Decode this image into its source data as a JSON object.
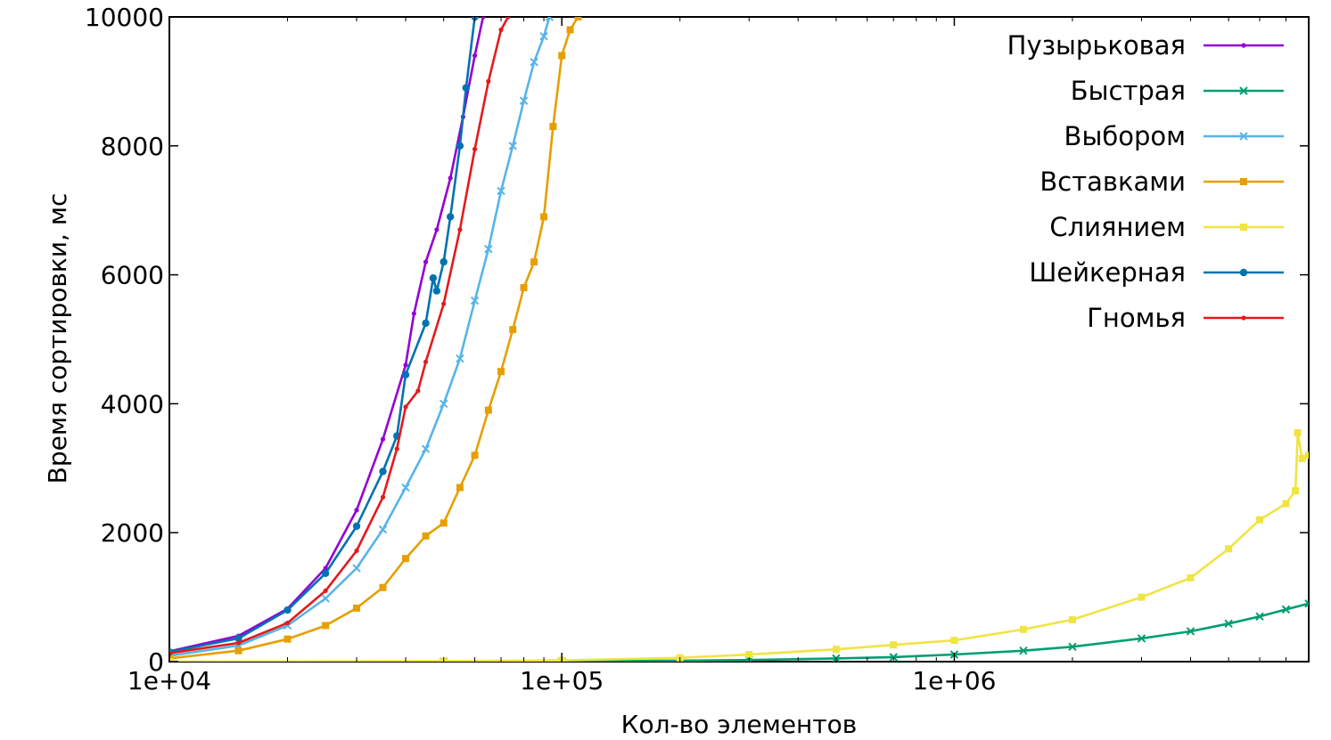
{
  "chart_data": {
    "type": "line",
    "title": "",
    "xlabel": "Кол-во элементов",
    "ylabel": "Время сортировки, мс",
    "xscale": "log",
    "xlim": [
      10000,
      8000000
    ],
    "ylim": [
      0,
      10000
    ],
    "x_ticks": [
      10000,
      100000,
      1000000
    ],
    "x_tick_labels": [
      "1e+04",
      "1e+05",
      "1e+06"
    ],
    "y_ticks": [
      0,
      2000,
      4000,
      6000,
      8000,
      10000
    ],
    "y_tick_labels": [
      "0",
      "2000",
      "4000",
      "6000",
      "8000",
      "10000"
    ],
    "grid": false,
    "legend_position": "top-right",
    "series": [
      {
        "name": "Пузырьковая",
        "color": "#9400d3",
        "marker": "dot",
        "x": [
          10000,
          15000,
          20000,
          25000,
          30000,
          35000,
          40000,
          42000,
          45000,
          48000,
          52000,
          56000,
          60000,
          63000
        ],
        "y": [
          160,
          400,
          820,
          1450,
          2350,
          3450,
          4600,
          5400,
          6200,
          6700,
          7500,
          8450,
          9400,
          10000
        ]
      },
      {
        "name": "Быстрая",
        "color": "#009e73",
        "marker": "x",
        "x": [
          10000,
          50000,
          100000,
          200000,
          300000,
          500000,
          700000,
          1000000,
          1500000,
          2000000,
          3000000,
          4000000,
          5000000,
          6000000,
          7000000,
          8000000
        ],
        "y": [
          0,
          0,
          5,
          15,
          25,
          50,
          70,
          110,
          170,
          230,
          360,
          470,
          590,
          700,
          810,
          900
        ]
      },
      {
        "name": "Выбором",
        "color": "#56b4e9",
        "marker": "x",
        "x": [
          10000,
          15000,
          20000,
          25000,
          30000,
          35000,
          40000,
          45000,
          50000,
          55000,
          60000,
          65000,
          70000,
          75000,
          80000,
          85000,
          90000,
          93000
        ],
        "y": [
          90,
          250,
          560,
          980,
          1450,
          2050,
          2700,
          3300,
          4000,
          4700,
          5600,
          6400,
          7300,
          8000,
          8700,
          9300,
          9700,
          10000
        ]
      },
      {
        "name": "Вставками",
        "color": "#e69f00",
        "marker": "square",
        "x": [
          10000,
          15000,
          20000,
          25000,
          30000,
          35000,
          40000,
          45000,
          50000,
          55000,
          60000,
          65000,
          70000,
          75000,
          80000,
          85000,
          90000,
          95000,
          100000,
          105000,
          110000
        ],
        "y": [
          50,
          170,
          350,
          560,
          830,
          1150,
          1600,
          1950,
          2150,
          2700,
          3200,
          3900,
          4500,
          5150,
          5800,
          6200,
          6900,
          8300,
          9400,
          9800,
          10000
        ]
      },
      {
        "name": "Слиянием",
        "color": "#f0e442",
        "marker": "square",
        "x": [
          10000,
          50000,
          100000,
          200000,
          300000,
          500000,
          700000,
          1000000,
          1500000,
          2000000,
          3000000,
          4000000,
          5000000,
          6000000,
          7000000,
          7400000,
          7500000,
          7700000,
          8000000
        ],
        "y": [
          0,
          10,
          20,
          60,
          110,
          190,
          260,
          330,
          500,
          650,
          1000,
          1300,
          1750,
          2200,
          2450,
          2650,
          3550,
          3150,
          3200
        ]
      },
      {
        "name": "Шейкерная",
        "color": "#0072b2",
        "marker": "circle",
        "x": [
          10000,
          15000,
          20000,
          25000,
          30000,
          35000,
          38000,
          40000,
          45000,
          47000,
          48000,
          50000,
          52000,
          55000,
          57000,
          60000
        ],
        "y": [
          150,
          360,
          800,
          1370,
          2100,
          2950,
          3500,
          4450,
          5250,
          5950,
          5750,
          6200,
          6900,
          8000,
          8900,
          10000
        ]
      },
      {
        "name": "Гномья",
        "color": "#e41a1c",
        "marker": "dot",
        "x": [
          10000,
          15000,
          20000,
          25000,
          30000,
          35000,
          38000,
          40000,
          43000,
          45000,
          50000,
          55000,
          60000,
          65000,
          70000,
          73000
        ],
        "y": [
          130,
          290,
          600,
          1100,
          1720,
          2550,
          3300,
          3950,
          4200,
          4650,
          5550,
          6700,
          7950,
          9000,
          9800,
          10000
        ]
      }
    ]
  }
}
